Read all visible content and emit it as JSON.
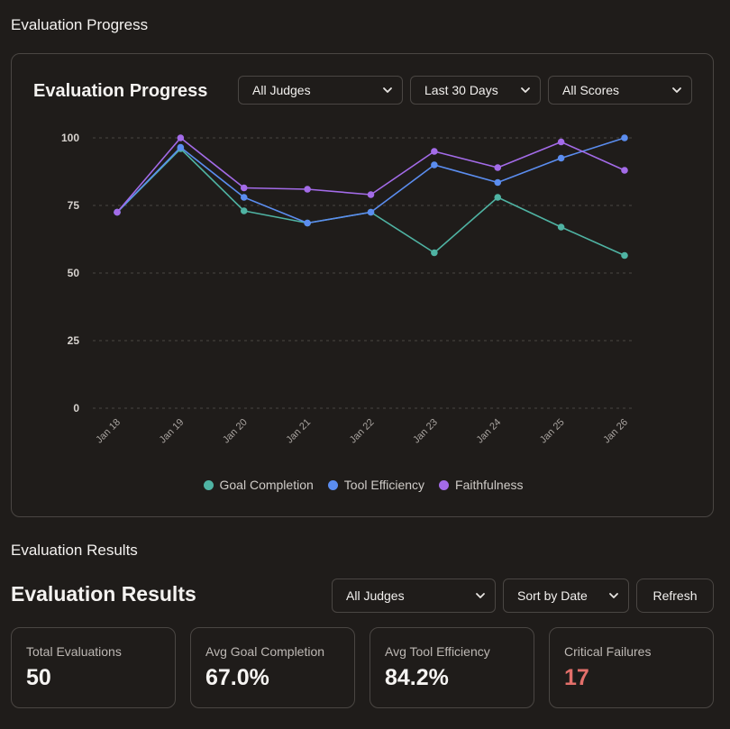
{
  "page": {
    "section_progress": "Evaluation Progress",
    "section_results": "Evaluation Results"
  },
  "progress_panel": {
    "title": "Evaluation Progress",
    "filters": {
      "judges": "All Judges",
      "range": "Last 30 Days",
      "scores": "All Scores"
    }
  },
  "chart_data": {
    "type": "line",
    "title": "Evaluation Progress",
    "xlabel": "",
    "ylabel": "",
    "ylim": [
      0,
      100
    ],
    "yticks": [
      0,
      25,
      50,
      75,
      100
    ],
    "grid": true,
    "legend_position": "bottom",
    "categories": [
      "Jan 18",
      "Jan 19",
      "Jan 20",
      "Jan 21",
      "Jan 22",
      "Jan 23",
      "Jan 24",
      "Jan 25",
      "Jan 26"
    ],
    "series": [
      {
        "name": "Goal Completion",
        "color": "#4fb3a3",
        "values": [
          72.5,
          96,
          73,
          68.5,
          72.5,
          57.5,
          78,
          67,
          56.5
        ]
      },
      {
        "name": "Tool Efficiency",
        "color": "#5b8def",
        "values": [
          72.5,
          96.5,
          78,
          68.5,
          72.5,
          90,
          83.5,
          92.5,
          100
        ]
      },
      {
        "name": "Faithfulness",
        "color": "#a36be8",
        "values": [
          72.5,
          100,
          81.5,
          81,
          79,
          95,
          89,
          98.5,
          88
        ]
      }
    ]
  },
  "results_panel": {
    "title": "Evaluation Results",
    "filters": {
      "judges": "All Judges",
      "sort": "Sort by Date"
    },
    "refresh_label": "Refresh",
    "cards": [
      {
        "label": "Total Evaluations",
        "value": "50"
      },
      {
        "label": "Avg Goal Completion",
        "value": "67.0%"
      },
      {
        "label": "Avg Tool Efficiency",
        "value": "84.2%"
      },
      {
        "label": "Critical Failures",
        "value": "17",
        "color": "#e36f6a"
      }
    ]
  }
}
